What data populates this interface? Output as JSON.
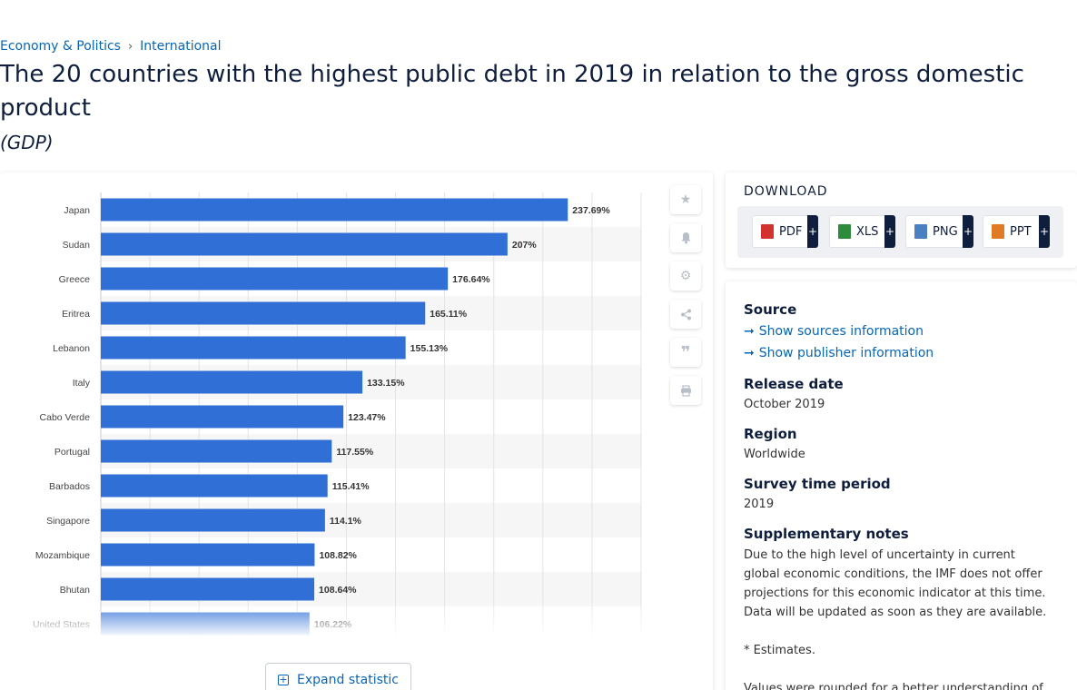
{
  "breadcrumb": {
    "item1": "Economy & Politics",
    "separator": "›",
    "item2": "International"
  },
  "title": "The 20 countries with the highest public debt in 2019 in relation to the gross domestic product",
  "subtitle": "(GDP)",
  "chart_data": {
    "type": "bar",
    "orientation": "horizontal",
    "categories": [
      "Japan",
      "Sudan",
      "Greece",
      "Eritrea",
      "Lebanon",
      "Italy",
      "Cabo Verde",
      "Portugal",
      "Barbados",
      "Singapore",
      "Mozambique",
      "Bhutan",
      "United States"
    ],
    "values": [
      237.69,
      207,
      176.64,
      165.11,
      155.13,
      133.15,
      123.47,
      117.55,
      115.41,
      114.1,
      108.82,
      108.64,
      106.22
    ],
    "value_labels": [
      "237.69%",
      "207%",
      "176.64%",
      "165.11%",
      "155.13%",
      "133.15%",
      "123.47%",
      "117.55%",
      "115.41%",
      "114.1%",
      "108.82%",
      "108.64%",
      "106.22%"
    ],
    "xlim": [
      0,
      275
    ],
    "grid": true,
    "bar_color": "#2f6fd6"
  },
  "expand_label": "Expand statistic",
  "download": {
    "title": "DOWNLOAD",
    "buttons": [
      {
        "label": "PDF",
        "plus": "+",
        "color": "#d3312f"
      },
      {
        "label": "XLS",
        "plus": "+",
        "color": "#2e8b3d"
      },
      {
        "label": "PNG",
        "plus": "+",
        "color": "#4a7fc1"
      },
      {
        "label": "PPT",
        "plus": "+",
        "color": "#e07b24"
      }
    ]
  },
  "info": {
    "source_heading": "Source",
    "show_sources": "Show sources information",
    "show_publisher": "Show publisher information",
    "release_heading": "Release date",
    "release_value": "October 2019",
    "region_heading": "Region",
    "region_value": "Worldwide",
    "survey_heading": "Survey time period",
    "survey_value": "2019",
    "supp_heading": "Supplementary notes",
    "supp_text": "Due to the high level of uncertainty in current global economic conditions, the IMF does not offer projections for this economic indicator at this time. Data will be updated as soon as they are available.",
    "estimates": "* Estimates.",
    "rounded": "Values were rounded for a better understanding of"
  },
  "tool_icons": [
    "star-icon",
    "bell-icon",
    "gear-icon",
    "share-icon",
    "quote-icon",
    "print-icon"
  ]
}
